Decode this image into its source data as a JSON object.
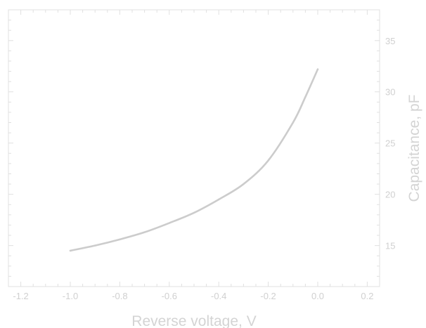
{
  "chart_data": {
    "type": "line",
    "title": "",
    "xlabel": "Reverse voltage, V",
    "ylabel": "Capacitance, pF",
    "xlim": [
      -1.25,
      0.25
    ],
    "ylim": [
      11,
      38
    ],
    "xticks": [
      -1.2,
      -1.0,
      -0.8,
      -0.6,
      -0.4,
      -0.2,
      0.0,
      0.2
    ],
    "xtick_labels": [
      "-1.2",
      "-1.0",
      "-0.8",
      "-0.6",
      "-0.4",
      "-0.2",
      "0.0",
      "0.2"
    ],
    "yticks": [
      15,
      20,
      25,
      30,
      35
    ],
    "ytick_labels": [
      "15",
      "20",
      "25",
      "30",
      "35"
    ],
    "y_axis_side": "right",
    "grid": false,
    "legend": "none",
    "colors": {
      "line": "#cccccc",
      "frame": "#e0e0e0",
      "text": "#d0d0d0"
    },
    "series": [
      {
        "x": [
          -1.0,
          -0.9,
          -0.8,
          -0.7,
          -0.6,
          -0.5,
          -0.4,
          -0.3,
          -0.2,
          -0.1,
          -0.05,
          0.0
        ],
        "values": [
          14.5,
          15.0,
          15.6,
          16.3,
          17.2,
          18.2,
          19.5,
          21.0,
          23.3,
          27.0,
          29.5,
          32.2
        ]
      }
    ]
  }
}
